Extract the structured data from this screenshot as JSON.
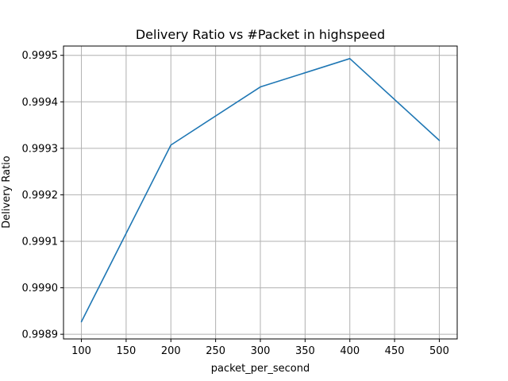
{
  "chart_data": {
    "type": "line",
    "title": "Delivery Ratio vs #Packet in highspeed",
    "xlabel": "packet_per_second",
    "ylabel": "Delivery Ratio",
    "x": [
      100,
      200,
      300,
      400,
      500
    ],
    "series": [
      {
        "values": [
          0.998927,
          0.999307,
          0.999432,
          0.999493,
          0.999317
        ],
        "color": "#1f77b4"
      }
    ],
    "xlim": [
      80,
      520
    ],
    "ylim": [
      0.99889,
      0.99952
    ],
    "xticks": [
      100,
      150,
      200,
      250,
      300,
      350,
      400,
      450,
      500
    ],
    "xtick_labels": [
      "100",
      "150",
      "200",
      "250",
      "300",
      "350",
      "400",
      "450",
      "500"
    ],
    "yticks": [
      0.9989,
      0.999,
      0.9991,
      0.9992,
      0.9993,
      0.9994,
      0.9995
    ],
    "ytick_labels": [
      "0.9989",
      "0.9990",
      "0.9991",
      "0.9992",
      "0.9993",
      "0.9994",
      "0.9995"
    ],
    "grid": true,
    "legend": "none"
  }
}
